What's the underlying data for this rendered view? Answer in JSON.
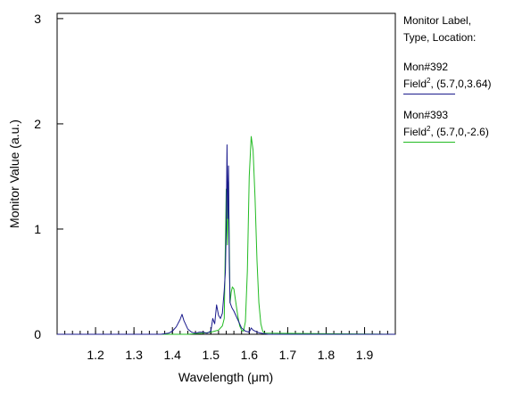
{
  "chart_data": {
    "type": "line",
    "xlabel": "Wavelength (μm)",
    "ylabel": "Monitor Value (a.u.)",
    "xlim": [
      1.1,
      1.98
    ],
    "ylim": [
      0,
      3.05
    ],
    "xticks": [
      "1.2",
      "1.3",
      "1.4",
      "1.5",
      "1.6",
      "1.7",
      "1.8",
      "1.9"
    ],
    "yticks": [
      "0",
      "1",
      "2",
      "3"
    ],
    "grid": false,
    "legend_position": "right",
    "series": [
      {
        "name": "Mon#392",
        "type_location": "Field², (5.7,0,3.64)",
        "color": "#1a1a8c",
        "x": [
          1.1,
          1.37,
          1.38,
          1.39,
          1.4,
          1.41,
          1.42,
          1.425,
          1.43,
          1.44,
          1.45,
          1.46,
          1.47,
          1.48,
          1.49,
          1.5,
          1.505,
          1.51,
          1.515,
          1.52,
          1.525,
          1.53,
          1.535,
          1.538,
          1.54,
          1.542,
          1.544,
          1.546,
          1.548,
          1.55,
          1.555,
          1.56,
          1.57,
          1.58,
          1.59,
          1.6,
          1.605,
          1.61,
          1.62,
          1.63,
          1.64,
          1.65,
          1.98
        ],
        "y": [
          0,
          0,
          0.005,
          0.01,
          0.03,
          0.07,
          0.14,
          0.19,
          0.13,
          0.05,
          0.02,
          0.01,
          0.02,
          0.02,
          0.01,
          0.03,
          0.15,
          0.1,
          0.28,
          0.18,
          0.15,
          0.2,
          0.42,
          0.6,
          1.0,
          1.8,
          1.1,
          1.6,
          0.7,
          0.3,
          0.25,
          0.22,
          0.14,
          0.06,
          0.03,
          0.02,
          0.06,
          0.04,
          0.02,
          0.01,
          0.005,
          0,
          0
        ]
      },
      {
        "name": "Mon#393",
        "type_location": "Field², (5.7,0,-2.6)",
        "color": "#22bb22",
        "x": [
          1.1,
          1.44,
          1.46,
          1.48,
          1.49,
          1.5,
          1.51,
          1.52,
          1.53,
          1.535,
          1.54,
          1.543,
          1.546,
          1.55,
          1.553,
          1.556,
          1.56,
          1.565,
          1.57,
          1.575,
          1.58,
          1.585,
          1.59,
          1.595,
          1.6,
          1.605,
          1.61,
          1.615,
          1.62,
          1.625,
          1.63,
          1.635,
          1.64,
          1.98
        ],
        "y": [
          0,
          0,
          0.005,
          0.01,
          0.015,
          0.02,
          0.03,
          0.04,
          0.08,
          0.15,
          1.38,
          0.85,
          1.45,
          0.3,
          0.4,
          0.45,
          0.43,
          0.3,
          0.18,
          0.08,
          0.04,
          0.03,
          0.12,
          0.6,
          1.5,
          1.88,
          1.75,
          1.3,
          0.7,
          0.3,
          0.1,
          0.03,
          0.01,
          0
        ]
      }
    ]
  },
  "legend": {
    "header_line1": "Monitor Label,",
    "header_line2": "Type, Location:",
    "entries": [
      {
        "label": "Mon#392",
        "field": "Field",
        "sup": "2",
        "location": ", (5.7,0,3.64)",
        "color": "#1a1a8c"
      },
      {
        "label": "Mon#393",
        "field": "Field",
        "sup": "2",
        "location": ", (5.7,0,-2.6)",
        "color": "#22bb22"
      }
    ]
  }
}
